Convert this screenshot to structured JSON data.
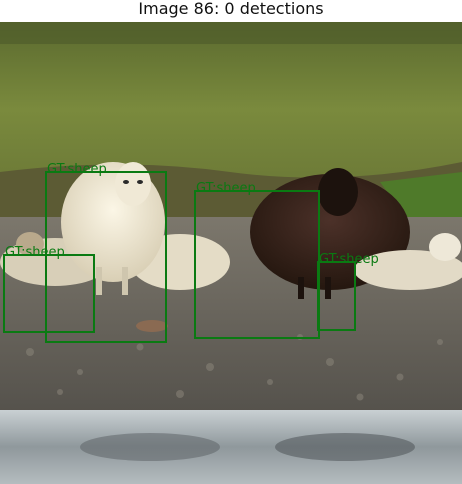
{
  "figure": {
    "title": "Image 86: 0 detections"
  },
  "annotations": {
    "box_color": "#0a7a12",
    "boxes": [
      {
        "label": "GT:sheep"
      },
      {
        "label": "GT:sheep"
      },
      {
        "label": "GT:sheep"
      },
      {
        "label": "GT:sheep"
      }
    ]
  },
  "scene_description_colors": {
    "grass": "#6e7a36",
    "gravel": "#6b6760",
    "water": "#a9b1b6",
    "white_sheep": "#ece6d3",
    "dark_sheep": "#3a2722"
  }
}
